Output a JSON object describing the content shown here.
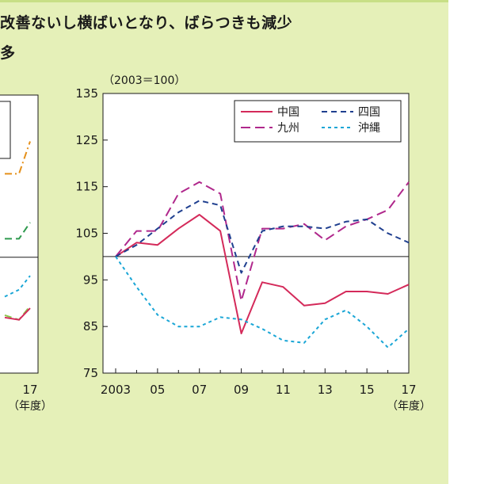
{
  "header": {
    "headline": "改善ないし横ばいとなり、ばらつきも減少",
    "subline": "多"
  },
  "chart_data": [
    {
      "type": "line",
      "title": "",
      "unit_label": "（2003＝100）",
      "x_unit_label": "（年度）",
      "x": [
        2003,
        2004,
        2005,
        2006,
        2007,
        2008,
        2009,
        2010,
        2011,
        2012,
        2013,
        2014,
        2015,
        2016,
        2017
      ],
      "x_tick_labels": [
        "2003",
        "05",
        "07",
        "09",
        "11",
        "13",
        "15",
        "17"
      ],
      "x_tick_values": [
        2003,
        2005,
        2007,
        2009,
        2011,
        2013,
        2015,
        2017
      ],
      "y_ticks": [
        75,
        85,
        95,
        105,
        115,
        125,
        135
      ],
      "ylim": [
        75,
        135
      ],
      "baseline": 100,
      "grid": false,
      "legend_position": "top-right",
      "series": [
        {
          "name": "中国",
          "color": "#d42a5a",
          "dash": "solid",
          "values": [
            100,
            103,
            102.5,
            106,
            109,
            105.5,
            83.5,
            94.5,
            93.5,
            89.5,
            90,
            92.5,
            92.5,
            92,
            94
          ]
        },
        {
          "name": "九州",
          "color": "#b0288c",
          "dash": "long",
          "values": [
            100,
            105.5,
            105.5,
            113.5,
            116,
            113.5,
            90.5,
            106,
            106,
            107,
            103.5,
            106.5,
            108,
            110,
            116
          ]
        },
        {
          "name": "四国",
          "color": "#1f3f8f",
          "dash": "medium",
          "values": [
            100,
            102.5,
            106,
            109.5,
            112,
            111,
            96.5,
            105.5,
            106.5,
            106.5,
            106,
            107.5,
            108,
            105,
            103
          ]
        },
        {
          "name": "沖縄",
          "color": "#1aa6d6",
          "dash": "short",
          "values": [
            100,
            93.5,
            87.5,
            85,
            85,
            87,
            86.5,
            84.5,
            82,
            81.5,
            86.5,
            88.5,
            85,
            80.5,
            84.5
          ]
        }
      ]
    },
    {
      "type": "line",
      "partial": true,
      "title": "",
      "x_tick_labels": [
        "17"
      ],
      "x_unit_label": "（年度）",
      "series": [
        {
          "color": "#e5901a",
          "dash": "dashdot",
          "values_visible": [
            118,
            118,
            125
          ]
        },
        {
          "color": "#2e9a4e",
          "dash": "dash",
          "values_visible": [
            104,
            104,
            107.5
          ]
        },
        {
          "color": "#1aa6d6",
          "dash": "short",
          "values_visible": [
            91.5,
            93,
            96
          ]
        },
        {
          "color": "#8bc34a",
          "dash": "dash",
          "values_visible": [
            87.5,
            86.5,
            89.5
          ]
        },
        {
          "color": "#d42a5a",
          "dash": "solid",
          "values_visible": [
            87,
            86.5,
            89
          ]
        }
      ]
    }
  ]
}
